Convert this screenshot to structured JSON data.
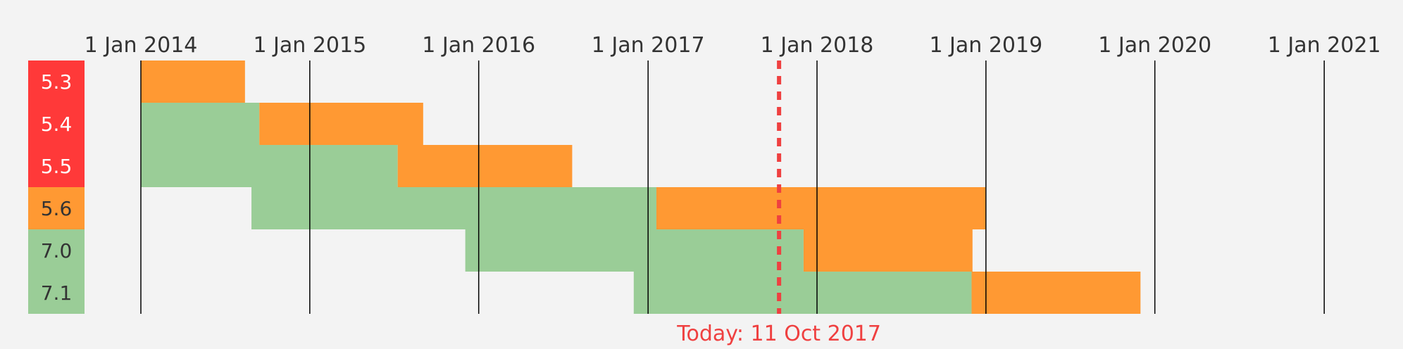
{
  "chart_data": {
    "type": "bar",
    "subtype": "timeline-gantt",
    "title": "",
    "x_range": [
      "2013-06-18",
      "2021-03-01"
    ],
    "x_ticks": [
      {
        "date": "2014-01-01",
        "label": "1 Jan 2014"
      },
      {
        "date": "2015-01-01",
        "label": "1 Jan 2015"
      },
      {
        "date": "2016-01-01",
        "label": "1 Jan 2016"
      },
      {
        "date": "2017-01-01",
        "label": "1 Jan 2017"
      },
      {
        "date": "2018-01-01",
        "label": "1 Jan 2018"
      },
      {
        "date": "2019-01-01",
        "label": "1 Jan 2019"
      },
      {
        "date": "2020-01-01",
        "label": "1 Jan 2020"
      },
      {
        "date": "2021-01-01",
        "label": "1 Jan 2021"
      }
    ],
    "today": {
      "date": "2017-10-11",
      "label": "Today: 11 Oct 2017"
    },
    "versions": [
      {
        "label": "5.3",
        "status": "eol",
        "active_start": null,
        "active_end": "2014-01-01",
        "security_end": "2014-08-14"
      },
      {
        "label": "5.4",
        "status": "eol",
        "active_start": "2014-01-01",
        "active_end": "2014-09-14",
        "security_end": "2015-09-03"
      },
      {
        "label": "5.5",
        "status": "eol",
        "active_start": "2014-01-01",
        "active_end": "2015-07-10",
        "security_end": "2016-07-21"
      },
      {
        "label": "5.6",
        "status": "security",
        "active_start": "2014-08-28",
        "active_end": "2017-01-19",
        "security_end": "2018-12-31"
      },
      {
        "label": "7.0",
        "status": "active",
        "active_start": "2015-12-03",
        "active_end": "2017-12-03",
        "security_end": "2018-12-03"
      },
      {
        "label": "7.1",
        "status": "active",
        "active_start": "2016-12-01",
        "active_end": "2018-12-01",
        "security_end": "2019-12-01"
      }
    ],
    "colors": {
      "active": "#9acd97",
      "security": "#ff9933",
      "eol": "#ff3939",
      "today": "#ef4040",
      "background": "#f3f3f3",
      "gridline": "#000000"
    }
  }
}
